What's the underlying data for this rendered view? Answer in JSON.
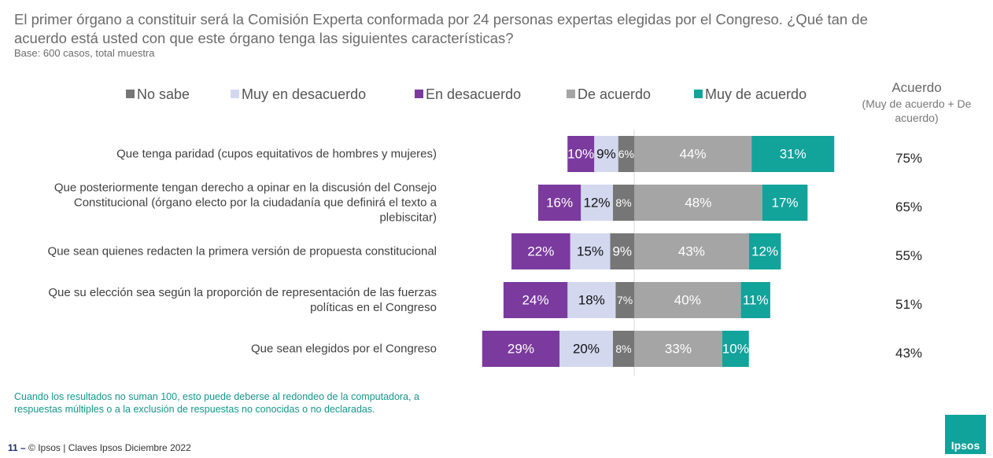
{
  "title": "El primer órgano a constituir será la Comisión Experta conformada por 24 personas expertas elegidas por el Congreso. ¿Qué tan de acuerdo está usted con que este órgano tenga las siguientes características?",
  "subtitle": "Base: 600 casos, total muestra",
  "chart_data": {
    "type": "diverging-bar",
    "categories": [
      "Que tenga paridad (cupos equitativos de hombres y mujeres)",
      "Que posteriormente tengan derecho a opinar en la discusión del Consejo Constitucional (órgano electo por la ciudadanía que definirá el texto a plebiscitar)",
      "Que sean quienes redacten la primera versión de propuesta constitucional",
      "Que su elección sea según la proporción de representación de las fuerzas políticas en el Congreso",
      "Que sean elegidos por el Congreso"
    ],
    "series": [
      {
        "name": "No sabe",
        "color": "#767676",
        "side": "left",
        "values": [
          6,
          8,
          9,
          7,
          8
        ],
        "value_labels": [
          "6%",
          "8%",
          "9%",
          "7%",
          "8%"
        ]
      },
      {
        "name": "Muy en desacuerdo",
        "color": "#d3d8ef",
        "side": "left",
        "values": [
          9,
          12,
          15,
          18,
          20
        ],
        "value_labels": [
          "9%",
          "12%",
          "15%",
          "18%",
          "20%"
        ]
      },
      {
        "name": "En desacuerdo",
        "color": "#7b3a9e",
        "side": "left",
        "values": [
          10,
          16,
          22,
          24,
          29
        ],
        "value_labels": [
          "10%",
          "16%",
          "22%",
          "24%",
          "29%"
        ]
      },
      {
        "name": "De acuerdo",
        "color": "#a5a5a5",
        "side": "right",
        "values": [
          44,
          48,
          43,
          40,
          33
        ],
        "value_labels": [
          "44%",
          "48%",
          "43%",
          "40%",
          "33%"
        ]
      },
      {
        "name": "Muy de acuerdo",
        "color": "#12a39b",
        "side": "right",
        "values": [
          31,
          17,
          12,
          11,
          10
        ],
        "value_labels": [
          "31%",
          "17%",
          "12%",
          "11%",
          "10%"
        ]
      }
    ],
    "totals": {
      "title": "Acuerdo",
      "subtitle": "(Muy de acuerdo + De acuerdo)",
      "values": [
        75,
        65,
        55,
        51,
        43
      ],
      "value_labels": [
        "75%",
        "65%",
        "55%",
        "51%",
        "43%"
      ]
    }
  },
  "footnote": "Cuando los resultados no suman 100, esto puede deberse al redondeo de la computadora, a respuestas múltiples o a la exclusión de respuestas no conocidas o no declaradas.",
  "footer": {
    "page": "11 –",
    "text": "© Ipsos | Claves Ipsos Diciembre 2022",
    "logo": "Ipsos"
  }
}
